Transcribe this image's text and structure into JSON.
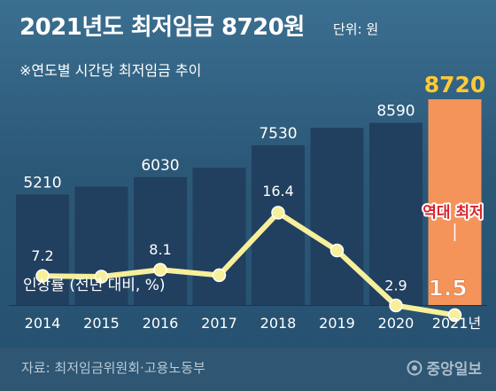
{
  "header": {
    "title": "2021년도 최저임금 8720원",
    "unit": "단위: 원",
    "subtitle": "※연도별 시간당 최저임금 추이"
  },
  "chart_data": {
    "type": "bar",
    "categories": [
      "2014",
      "2015",
      "2016",
      "2017",
      "2018",
      "2019",
      "2020",
      "2021년"
    ],
    "series": [
      {
        "values": [
          5210,
          5580,
          6030,
          6470,
          7530,
          8350,
          8590,
          8720
        ],
        "value_labels": [
          "5210",
          "",
          "6030",
          "",
          "7530",
          "",
          "8590",
          "8720"
        ]
      },
      {
        "name": "인상률 (전년 대비, %)",
        "type": "line",
        "values": [
          7.2,
          7.1,
          8.1,
          7.3,
          16.4,
          10.9,
          2.9,
          1.5
        ],
        "value_labels": [
          "7.2",
          "",
          "8.1",
          "",
          "16.4",
          "",
          "2.9",
          "1.5"
        ]
      }
    ],
    "annotation": "역대 최저",
    "bar_ylim": [
      0,
      9700
    ],
    "line_ylim": [
      0,
      28
    ],
    "highlight_category": "2021년",
    "legend_position": "bottom-left",
    "grid": false
  },
  "colors": {
    "background": "#2c5878",
    "bar": "#213f5f",
    "highlight_bar": "#f5945a",
    "highlight_value": "#ffc938",
    "line": "#f7ef9a",
    "annotation": "#d8232a",
    "footer": "#2f5672"
  },
  "footer": {
    "source": "자료: 최저임금위원회·고용노동부",
    "logo": "중앙일보"
  }
}
